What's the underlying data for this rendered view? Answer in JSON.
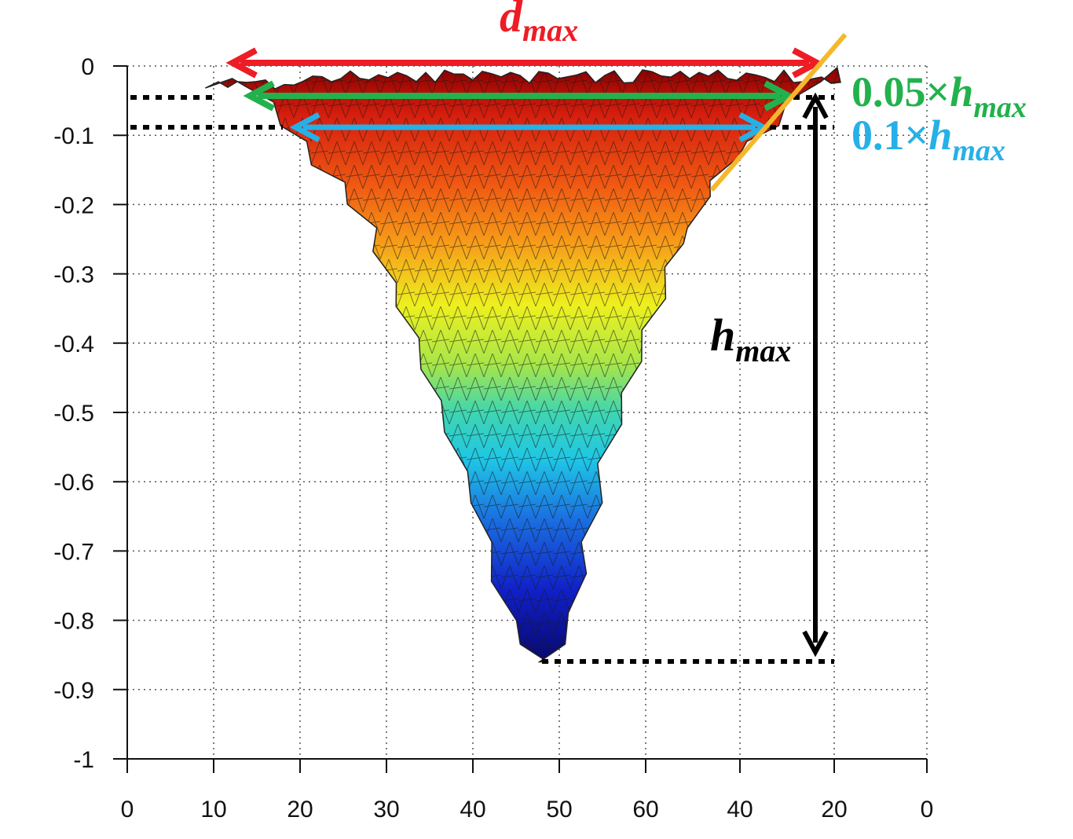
{
  "chart_data": {
    "type": "surface",
    "grid": true,
    "y_ticks": [
      "0",
      "-0.1",
      "-0.2",
      "-0.3",
      "-0.4",
      "-0.5",
      "-0.6",
      "-0.7",
      "-0.8",
      "-0.9",
      "-1"
    ],
    "y_tick_values": [
      0,
      -0.1,
      -0.2,
      -0.3,
      -0.4,
      -0.5,
      -0.6,
      -0.7,
      -0.8,
      -0.9,
      -1
    ],
    "ylim": [
      -1,
      0
    ],
    "x_ticks": [
      "0",
      "10",
      "20",
      "30",
      "40",
      "50",
      "60",
      "40",
      "20",
      "0"
    ],
    "profile_depth": -0.86,
    "annotations": {
      "dmax": {
        "main": "d",
        "sub": "max",
        "color": "#ee1c25"
      },
      "level_005": {
        "prefix": "0.05×",
        "main": "h",
        "sub": "max",
        "color": "#22b14c"
      },
      "level_01": {
        "prefix": "0.1×",
        "main": "h",
        "sub": "max",
        "color": "#26b0e8"
      },
      "hmax": {
        "main": "h",
        "sub": "max",
        "color": "#000000"
      },
      "slope_color": "#f5b72b"
    },
    "colormap": [
      "#00008f",
      "#0000ff",
      "#0080ff",
      "#00ffff",
      "#80ff80",
      "#ffff00",
      "#ff8000",
      "#ff0000",
      "#800000"
    ]
  }
}
